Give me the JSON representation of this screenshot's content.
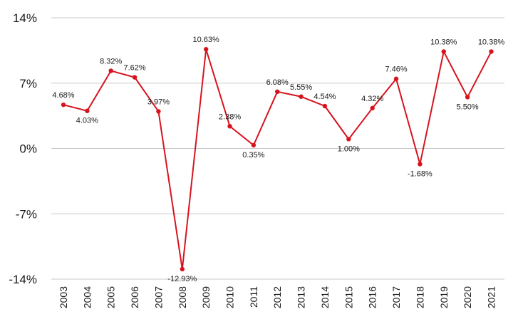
{
  "chart_data": {
    "type": "line",
    "title": "",
    "xlabel": "",
    "ylabel": "",
    "categories": [
      "2003",
      "2004",
      "2005",
      "2006",
      "2007",
      "2008",
      "2009",
      "2010",
      "2011",
      "2012",
      "2013",
      "2014",
      "2015",
      "2016",
      "2017",
      "2018",
      "2019",
      "2020",
      "2021"
    ],
    "series": [
      {
        "values": [
          4.68,
          4.03,
          8.32,
          7.62,
          3.97,
          -12.93,
          10.63,
          2.38,
          0.35,
          6.08,
          5.55,
          4.54,
          1.0,
          4.32,
          7.46,
          -1.68,
          10.38,
          5.5,
          10.38
        ],
        "data_labels": [
          "4.68%",
          "4.03%",
          "8.32%",
          "7.62%",
          "3.97%",
          "-12.93%",
          "10.63%",
          "2.38%",
          "0.35%",
          "6.08%",
          "5.55%",
          "4.54%",
          "1.00%",
          "4.32%",
          "7.46%",
          "-1.68%",
          "10.38%",
          "5.50%",
          "10.38%"
        ],
        "color": "#d7141e"
      }
    ],
    "ylim": [
      -14,
      14
    ],
    "yticks": [
      14,
      7,
      0,
      -7,
      -14
    ],
    "ytick_labels": [
      "14%",
      "7%",
      "0%",
      "-7%",
      "-14%"
    ],
    "grid": true,
    "legend": "none"
  }
}
